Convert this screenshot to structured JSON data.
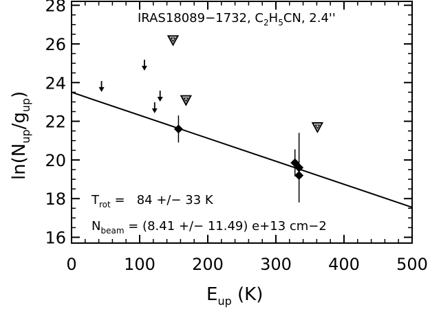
{
  "chart_data": {
    "type": "scatter",
    "title": "IRAS18089−1732, C",
    "title_sub1": "2",
    "title_mid1": "H",
    "title_sub2": "5",
    "title_tail": "CN, 2.4''",
    "xlabel_main": "E",
    "xlabel_sub": "up",
    "xlabel_tail": " (K)",
    "ylabel_pre": "ln(N",
    "ylabel_sub1": "up",
    "ylabel_mid": "/g",
    "ylabel_sub2": "up",
    "ylabel_post": ")",
    "xlim": [
      0,
      500
    ],
    "ylim": [
      15.7,
      28.2
    ],
    "xticks": [
      0,
      100,
      200,
      300,
      400,
      500
    ],
    "xtick_labels": [
      "0",
      "100",
      "200",
      "300",
      "400",
      "500"
    ],
    "yticks": [
      16,
      18,
      20,
      22,
      24,
      26,
      28
    ],
    "ytick_labels": [
      "16",
      "18",
      "20",
      "22",
      "24",
      "26",
      "28"
    ],
    "fit_line": {
      "x": [
        0,
        500
      ],
      "y": [
        23.5,
        17.55
      ]
    },
    "detections": [
      {
        "x": 157,
        "y": 21.6,
        "err": 0.7
      },
      {
        "x": 328,
        "y": 19.85,
        "err": 0.7
      },
      {
        "x": 334,
        "y": 19.6,
        "err": 1.8
      },
      {
        "x": 334,
        "y": 19.2,
        "err": 0
      }
    ],
    "upper_limits": [
      {
        "x": 44,
        "y": 23.8
      },
      {
        "x": 107,
        "y": 24.9
      },
      {
        "x": 122,
        "y": 22.7
      },
      {
        "x": 130,
        "y": 23.3
      }
    ],
    "triangles": [
      {
        "x": 149,
        "y": 26.2
      },
      {
        "x": 168,
        "y": 23.1
      },
      {
        "x": 361,
        "y": 21.7
      }
    ],
    "trot_label": "T",
    "trot_sub": "rot",
    "trot_value": " =   84 +/− 33 K",
    "nbeam_label": "N",
    "nbeam_sub": "beam",
    "nbeam_value": " = (8.41 +/− 11.49) e+13 cm−2"
  }
}
